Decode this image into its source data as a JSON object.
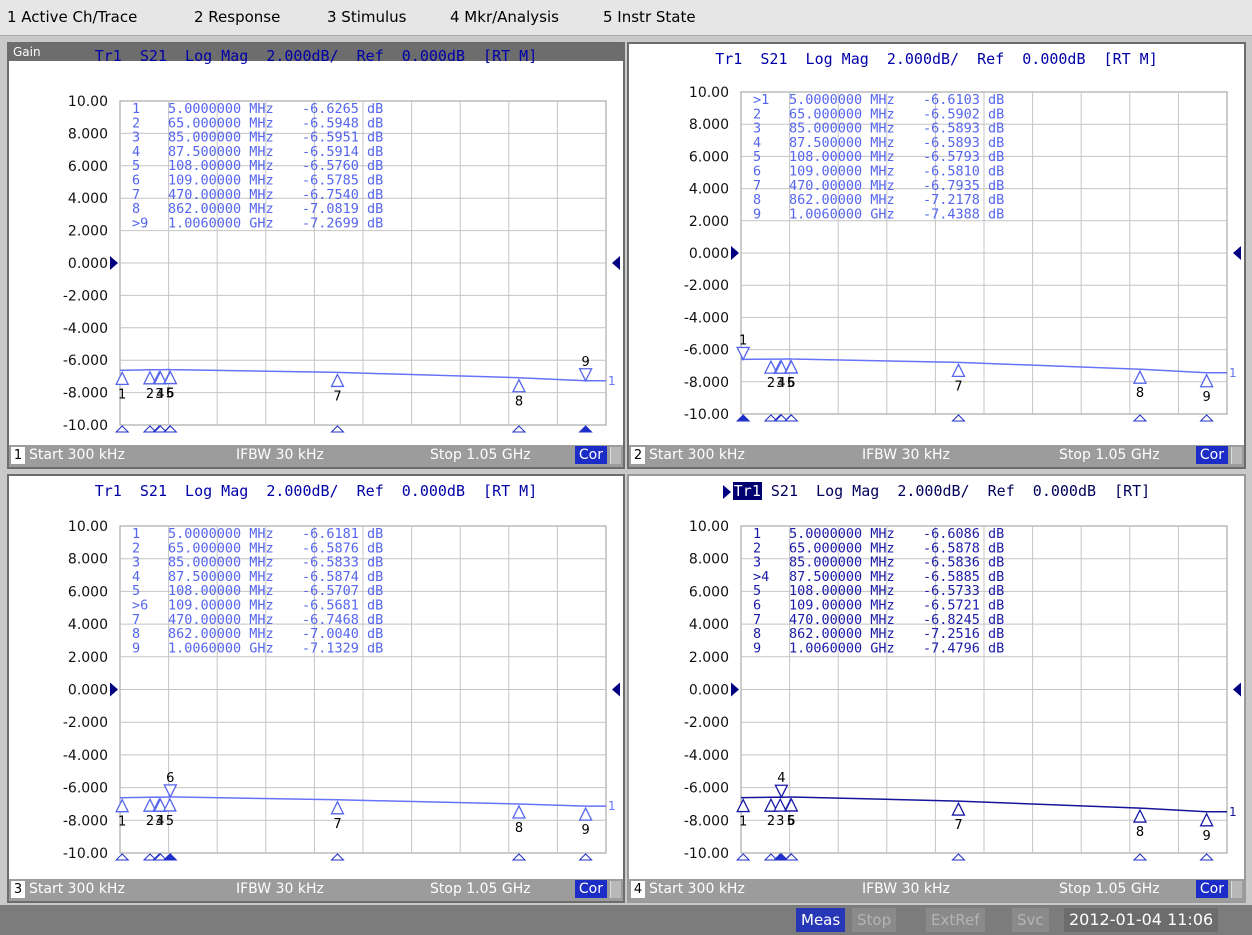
{
  "menu": [
    "1 Active Ch/Trace",
    "2 Response",
    "3 Stimulus",
    "4 Mkr/Analysis",
    "5 Instr State"
  ],
  "colors": {
    "trace_light": "#5563ff",
    "trace_dark": "#17189e",
    "grid": "#b4b4b4",
    "cor": "#1b2cc7"
  },
  "channels": [
    {
      "channel": "1",
      "panel_label": "Gain",
      "header": "Tr1  S21  Log Mag  2.000dB/  Ref  0.000dB  [RT M]",
      "start": "Start 300 kHz",
      "ifbw": "IFBW 30 kHz",
      "stop": "Stop 1.05 GHz",
      "cor": "Cor",
      "y_labels": [
        "10.00",
        "8.000",
        "6.000",
        "4.000",
        "2.000",
        "0.000",
        "-2.000",
        "-4.000",
        "-6.000",
        "-8.000",
        "-10.00"
      ],
      "markers": [
        {
          "id": "1",
          "freq": "5.0000000 MHz",
          "value": "-6.6265 dB",
          "f": 5,
          "db": -6.6265,
          "active": false
        },
        {
          "id": "2",
          "freq": "65.000000 MHz",
          "value": "-6.5948 dB",
          "f": 65,
          "db": -6.5948,
          "active": false
        },
        {
          "id": "3",
          "freq": "85.000000 MHz",
          "value": "-6.5951 dB",
          "f": 85,
          "db": -6.5951,
          "active": false
        },
        {
          "id": "4",
          "freq": "87.500000 MHz",
          "value": "-6.5914 dB",
          "f": 87.5,
          "db": -6.5914,
          "active": false
        },
        {
          "id": "5",
          "freq": "108.00000 MHz",
          "value": "-6.5760 dB",
          "f": 108,
          "db": -6.576,
          "active": false
        },
        {
          "id": "6",
          "freq": "109.00000 MHz",
          "value": "-6.5785 dB",
          "f": 109,
          "db": -6.5785,
          "active": false
        },
        {
          "id": "7",
          "freq": "470.00000 MHz",
          "value": "-6.7540 dB",
          "f": 470,
          "db": -6.754,
          "active": false
        },
        {
          "id": "8",
          "freq": "862.00000 MHz",
          "value": "-7.0819 dB",
          "f": 862,
          "db": -7.0819,
          "active": false
        },
        {
          "id": "9",
          "freq": "1.0060000 GHz",
          "value": "-7.2699 dB",
          "f": 1006,
          "db": -7.2699,
          "active": true
        }
      ]
    },
    {
      "channel": "2",
      "panel_label": "",
      "header": "Tr1  S21  Log Mag  2.000dB/  Ref  0.000dB  [RT M]",
      "start": "Start 300 kHz",
      "ifbw": "IFBW 30 kHz",
      "stop": "Stop 1.05 GHz",
      "cor": "Cor",
      "y_labels": [
        "10.00",
        "8.000",
        "6.000",
        "4.000",
        "2.000",
        "0.000",
        "-2.000",
        "-4.000",
        "-6.000",
        "-8.000",
        "-10.00"
      ],
      "markers": [
        {
          "id": "1",
          "freq": "5.0000000 MHz",
          "value": "-6.6103 dB",
          "f": 5,
          "db": -6.6103,
          "active": true
        },
        {
          "id": "2",
          "freq": "65.000000 MHz",
          "value": "-6.5902 dB",
          "f": 65,
          "db": -6.5902,
          "active": false
        },
        {
          "id": "3",
          "freq": "85.000000 MHz",
          "value": "-6.5893 dB",
          "f": 85,
          "db": -6.5893,
          "active": false
        },
        {
          "id": "4",
          "freq": "87.500000 MHz",
          "value": "-6.5893 dB",
          "f": 87.5,
          "db": -6.5893,
          "active": false
        },
        {
          "id": "5",
          "freq": "108.00000 MHz",
          "value": "-6.5793 dB",
          "f": 108,
          "db": -6.5793,
          "active": false
        },
        {
          "id": "6",
          "freq": "109.00000 MHz",
          "value": "-6.5810 dB",
          "f": 109,
          "db": -6.581,
          "active": false
        },
        {
          "id": "7",
          "freq": "470.00000 MHz",
          "value": "-6.7935 dB",
          "f": 470,
          "db": -6.7935,
          "active": false
        },
        {
          "id": "8",
          "freq": "862.00000 MHz",
          "value": "-7.2178 dB",
          "f": 862,
          "db": -7.2178,
          "active": false
        },
        {
          "id": "9",
          "freq": "1.0060000 GHz",
          "value": "-7.4388 dB",
          "f": 1006,
          "db": -7.4388,
          "active": false
        }
      ]
    },
    {
      "channel": "3",
      "panel_label": "",
      "header": "Tr1  S21  Log Mag  2.000dB/  Ref  0.000dB  [RT M]",
      "start": "Start 300 kHz",
      "ifbw": "IFBW 30 kHz",
      "stop": "Stop 1.05 GHz",
      "cor": "Cor",
      "y_labels": [
        "10.00",
        "8.000",
        "6.000",
        "4.000",
        "2.000",
        "0.000",
        "-2.000",
        "-4.000",
        "-6.000",
        "-8.000",
        "-10.00"
      ],
      "markers": [
        {
          "id": "1",
          "freq": "5.0000000 MHz",
          "value": "-6.6181 dB",
          "f": 5,
          "db": -6.6181,
          "active": false
        },
        {
          "id": "2",
          "freq": "65.000000 MHz",
          "value": "-6.5876 dB",
          "f": 65,
          "db": -6.5876,
          "active": false
        },
        {
          "id": "3",
          "freq": "85.000000 MHz",
          "value": "-6.5833 dB",
          "f": 85,
          "db": -6.5833,
          "active": false
        },
        {
          "id": "4",
          "freq": "87.500000 MHz",
          "value": "-6.5874 dB",
          "f": 87.5,
          "db": -6.5874,
          "active": false
        },
        {
          "id": "5",
          "freq": "108.00000 MHz",
          "value": "-6.5707 dB",
          "f": 108,
          "db": -6.5707,
          "active": false
        },
        {
          "id": "6",
          "freq": "109.00000 MHz",
          "value": "-6.5681 dB",
          "f": 109,
          "db": -6.5681,
          "active": true
        },
        {
          "id": "7",
          "freq": "470.00000 MHz",
          "value": "-6.7468 dB",
          "f": 470,
          "db": -6.7468,
          "active": false
        },
        {
          "id": "8",
          "freq": "862.00000 MHz",
          "value": "-7.0040 dB",
          "f": 862,
          "db": -7.004,
          "active": false
        },
        {
          "id": "9",
          "freq": "1.0060000 GHz",
          "value": "-7.1329 dB",
          "f": 1006,
          "db": -7.1329,
          "active": false
        }
      ]
    },
    {
      "channel": "4",
      "panel_label": "",
      "header_prefix": "Tr1",
      "header": " S21  Log Mag  2.000dB/  Ref  0.000dB  [RT]",
      "start": "Start 300 kHz",
      "ifbw": "IFBW 30 kHz",
      "stop": "Stop 1.05 GHz",
      "cor": "Cor",
      "y_labels": [
        "10.00",
        "8.000",
        "6.000",
        "4.000",
        "2.000",
        "0.000",
        "-2.000",
        "-4.000",
        "-6.000",
        "-8.000",
        "-10.00"
      ],
      "markers": [
        {
          "id": "1",
          "freq": "5.0000000 MHz",
          "value": "-6.6086 dB",
          "f": 5,
          "db": -6.6086,
          "active": false
        },
        {
          "id": "2",
          "freq": "65.000000 MHz",
          "value": "-6.5878 dB",
          "f": 65,
          "db": -6.5878,
          "active": false
        },
        {
          "id": "3",
          "freq": "85.000000 MHz",
          "value": "-6.5836 dB",
          "f": 85,
          "db": -6.5836,
          "active": false
        },
        {
          "id": "4",
          "freq": "87.500000 MHz",
          "value": "-6.5885 dB",
          "f": 87.5,
          "db": -6.5885,
          "active": true
        },
        {
          "id": "5",
          "freq": "108.00000 MHz",
          "value": "-6.5733 dB",
          "f": 108,
          "db": -6.5733,
          "active": false
        },
        {
          "id": "6",
          "freq": "109.00000 MHz",
          "value": "-6.5721 dB",
          "f": 109,
          "db": -6.5721,
          "active": false
        },
        {
          "id": "7",
          "freq": "470.00000 MHz",
          "value": "-6.8245 dB",
          "f": 470,
          "db": -6.8245,
          "active": false
        },
        {
          "id": "8",
          "freq": "862.00000 MHz",
          "value": "-7.2516 dB",
          "f": 862,
          "db": -7.2516,
          "active": false
        },
        {
          "id": "9",
          "freq": "1.0060000 GHz",
          "value": "-7.4796 dB",
          "f": 1006,
          "db": -7.4796,
          "active": false
        }
      ]
    }
  ],
  "footer": {
    "meas": "Meas",
    "stop": "Stop",
    "extref": "ExtRef",
    "svc": "Svc",
    "datetime": "2012-01-04 11:06"
  }
}
